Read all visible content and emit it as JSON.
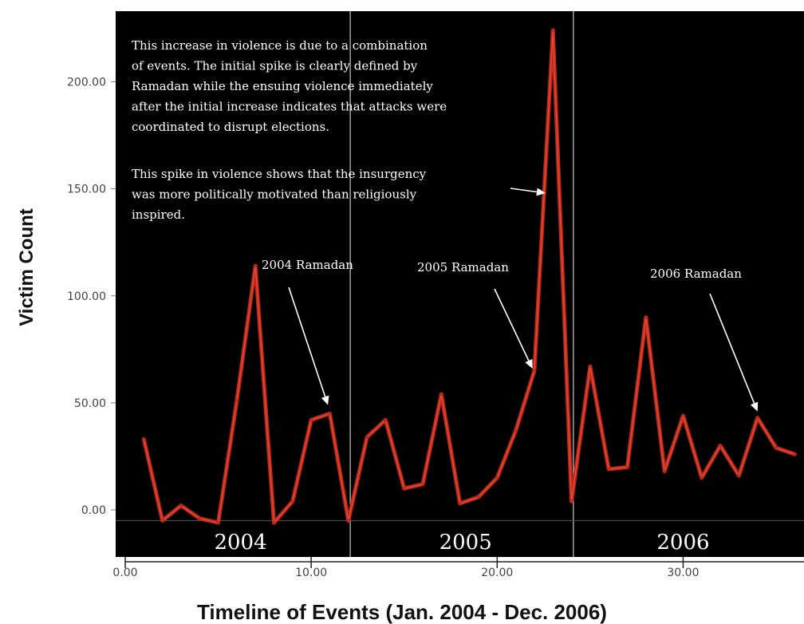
{
  "chart_data": {
    "type": "line",
    "title": "",
    "xlabel": "Timeline of Events (Jan. 2004 - Dec. 2006)",
    "ylabel": "Victim Count",
    "xlim": [
      -0.3,
      36.5
    ],
    "ylim": [
      -22,
      233
    ],
    "x_ticks": [
      {
        "value": 0,
        "label": "0.00"
      },
      {
        "value": 10,
        "label": "10.00"
      },
      {
        "value": 20,
        "label": "20.00"
      },
      {
        "value": 30,
        "label": "30.00"
      }
    ],
    "y_ticks": [
      {
        "value": 0,
        "label": "0.00"
      },
      {
        "value": 50,
        "label": "50.00"
      },
      {
        "value": 100,
        "label": "100.00"
      },
      {
        "value": 150,
        "label": "150.00"
      },
      {
        "value": 200,
        "label": "200.00"
      }
    ],
    "series": [
      {
        "color": "#c0281a",
        "x": [
          1,
          2,
          3,
          4,
          5,
          6,
          7,
          8,
          9,
          10,
          11,
          12,
          13,
          14,
          15,
          16,
          17,
          18,
          19,
          20,
          21,
          22,
          23,
          24,
          25,
          26,
          27,
          28,
          29,
          30,
          31,
          32,
          33,
          34,
          35,
          36
        ],
        "y": [
          33,
          -5,
          2,
          -4,
          -6,
          51,
          114,
          -6,
          4,
          42,
          45,
          -5,
          34,
          42,
          10,
          12,
          54,
          3,
          6,
          15,
          37,
          65,
          224,
          4,
          67,
          19,
          20,
          90,
          18,
          44,
          15,
          30,
          16,
          43,
          29,
          26
        ]
      }
    ],
    "year_dividers": [
      12.1,
      24.1
    ],
    "year_labels": [
      {
        "label": "2004",
        "x": 6.2
      },
      {
        "label": "2005",
        "x": 18.3
      },
      {
        "label": "2006",
        "x": 30.0
      }
    ],
    "annotations": {
      "main_paragraph_1": [
        "This increase in violence is due to a combination",
        "of events.  The initial spike is clearly defined by",
        "Ramadan while the ensuing violence immediately",
        "after the initial increase indicates that attacks were",
        "coordinated to disrupt elections."
      ],
      "main_paragraph_2": [
        "This spike in violence shows that the insurgency",
        "was more politically motivated than religiously",
        "inspired."
      ],
      "ramadan": [
        {
          "label": "2004 Ramadan",
          "point": [
            10.9,
            49
          ]
        },
        {
          "label": "2005 Ramadan",
          "point": [
            21.9,
            66
          ]
        },
        {
          "label": "2006 Ramadan",
          "point": [
            34.0,
            46
          ]
        }
      ]
    },
    "grid": false,
    "legend": "none",
    "colors": {
      "plot_background": "#000000",
      "line": "#c0281a",
      "text": "#ffffff"
    }
  }
}
